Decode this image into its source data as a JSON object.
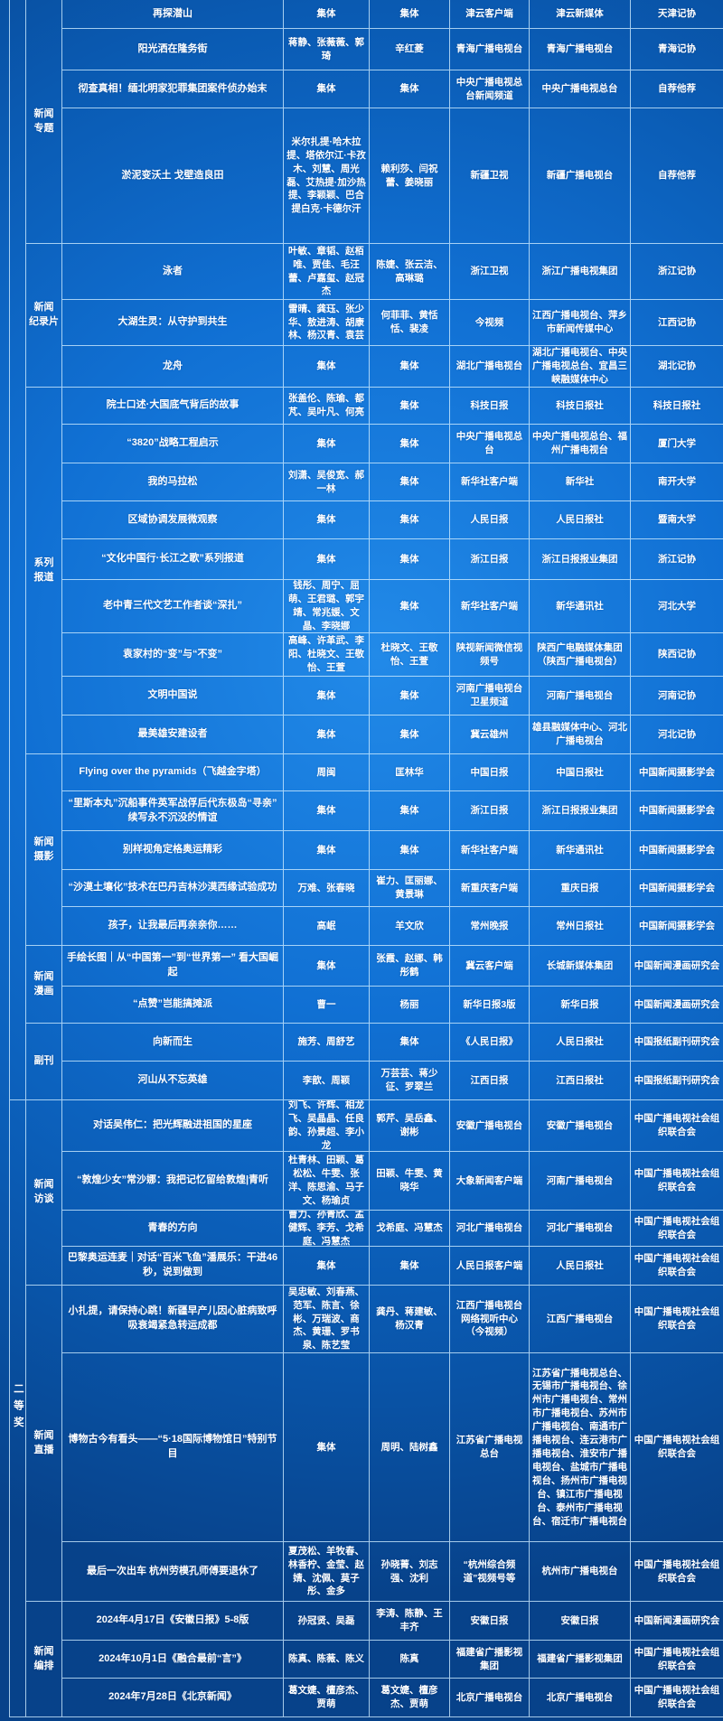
{
  "table": {
    "tiers": [
      {
        "label": ""
      },
      {
        "label": "二等奖"
      }
    ],
    "groups": [
      {
        "category": "新闻\n专题",
        "tier": 0,
        "rows": [
          {
            "title": "再探潜山",
            "authors": "集体",
            "editors": "集体",
            "media": "津云客户端",
            "org": "津云新媒体",
            "recommender": "天津记协"
          },
          {
            "title": "阳光洒在隆务街",
            "authors": "蒋静、张薇薇、郭琦",
            "editors": "辛红菱",
            "media": "青海广播电视台",
            "org": "青海广播电视台",
            "recommender": "青海记协"
          },
          {
            "title": "彻查真相！缅北明家犯罪集团案件侦办始末",
            "authors": "集体",
            "editors": "集体",
            "media": "中央广播电视总台新闻频道",
            "org": "中央广播电视总台",
            "recommender": "自荐他荐"
          },
          {
            "title": "淤泥变沃土 戈壁造良田",
            "authors": "米尔扎提·哈木拉提、塔依尔江·卡孜木、刘慧、周光磊、艾热提·加沙热提、李颖颖、巴合提白克·卡德尔汗",
            "editors": "赖利莎、闫祝蕾、姜晓丽",
            "media": "新疆卫视",
            "org": "新疆广播电视台",
            "recommender": "自荐他荐"
          }
        ]
      },
      {
        "category": "新闻\n纪录片",
        "tier": 0,
        "rows": [
          {
            "title": "泳者",
            "authors": "叶敏、章韬、赵栢唯、贾佳、毛汪蕾、卢嘉玺、赵冠杰",
            "editors": "陈婕、张云洁、高琳璐",
            "media": "浙江卫视",
            "org": "浙江广播电视集团",
            "recommender": "浙江记协"
          },
          {
            "title": "大湖生灵：从守护到共生",
            "authors": "雷晴、龚珏、张少华、敖进涛、胡康林、杨汉青、袁芸",
            "editors": "何菲菲、黄恬恬、裴凌",
            "media": "今视频",
            "org": "江西广播电视台、萍乡市新闻传媒中心",
            "recommender": "江西记协"
          },
          {
            "title": "龙舟",
            "authors": "集体",
            "editors": "集体",
            "media": "湖北广播电视台",
            "org": "湖北广播电视台、中央广播电视总台、宜昌三峡融媒体中心",
            "recommender": "湖北记协"
          }
        ]
      },
      {
        "category": "系列\n报道",
        "tier": 0,
        "rows": [
          {
            "title": "院士口述·大国底气背后的故事",
            "authors": "张盖伦、陈瑜、都芃、吴叶凡、何亮",
            "editors": "集体",
            "media": "科技日报",
            "org": "科技日报社",
            "recommender": "科技日报社"
          },
          {
            "title": "“3820”战略工程启示",
            "authors": "集体",
            "editors": "集体",
            "media": "中央广播电视总台",
            "org": "中央广播电视总台、福州广播电视台",
            "recommender": "厦门大学"
          },
          {
            "title": "我的马拉松",
            "authors": "刘潇、吴俊宽、郝一林",
            "editors": "集体",
            "media": "新华社客户端",
            "org": "新华社",
            "recommender": "南开大学"
          },
          {
            "title": "区域协调发展微观察",
            "authors": "集体",
            "editors": "集体",
            "media": "人民日报",
            "org": "人民日报社",
            "recommender": "暨南大学"
          },
          {
            "title": "“文化中国行·长江之歌”系列报道",
            "authors": "集体",
            "editors": "集体",
            "media": "浙江日报",
            "org": "浙江日报报业集团",
            "recommender": "浙江记协"
          },
          {
            "title": "老中青三代文艺工作者谈“深扎”",
            "authors": "钱彤、周宁、屈萌、王君璐、郭宇靖、常兆媛、文晶、李晓娜",
            "editors": "集体",
            "media": "新华社客户端",
            "org": "新华通讯社",
            "recommender": "河北大学"
          },
          {
            "title": "袁家村的“变”与“不变”",
            "authors": "高峰、许革武、李阳、杜晓文、王敬怡、王萱",
            "editors": "杜晓文、王敬怡、王萱",
            "media": "陕视新闻微信视频号",
            "org": "陕西广电融媒体集团（陕西广播电视台）",
            "recommender": "陕西记协"
          },
          {
            "title": "文明中国说",
            "authors": "集体",
            "editors": "集体",
            "media": "河南广播电视台卫星频道",
            "org": "河南广播电视台",
            "recommender": "河南记协"
          },
          {
            "title": "最美雄安建设者",
            "authors": "集体",
            "editors": "集体",
            "media": "冀云雄州",
            "org": "雄县融媒体中心、河北广播电视台",
            "recommender": "河北记协"
          }
        ]
      },
      {
        "category": "新闻\n摄影",
        "tier": 0,
        "rows": [
          {
            "title": "Flying over the pyramids（飞越金字塔）",
            "authors": "周闽",
            "editors": "匡林华",
            "media": "中国日报",
            "org": "中国日报社",
            "recommender": "中国新闻摄影学会"
          },
          {
            "title": "“里斯本丸”沉船事件英军战俘后代东极岛“寻亲” 续写永不沉没的情谊",
            "authors": "集体",
            "editors": "集体",
            "media": "浙江日报",
            "org": "浙江日报报业集团",
            "recommender": "中国新闻摄影学会"
          },
          {
            "title": "别样视角定格奥运精彩",
            "authors": "集体",
            "editors": "集体",
            "media": "新华社客户端",
            "org": "新华通讯社",
            "recommender": "中国新闻摄影学会"
          },
          {
            "title": "“沙漠土壤化”技术在巴丹吉林沙漠西缘试验成功",
            "authors": "万难、张春晓",
            "editors": "崔力、匡丽娜、黄景琳",
            "media": "新重庆客户端",
            "org": "重庆日报",
            "recommender": "中国新闻摄影学会"
          },
          {
            "title": "孩子，让我最后再亲亲你……",
            "authors": "高岷",
            "editors": "羊文欣",
            "media": "常州晚报",
            "org": "常州日报社",
            "recommender": "中国新闻摄影学会"
          }
        ]
      },
      {
        "category": "新闻\n漫画",
        "tier": 0,
        "rows": [
          {
            "title": "手绘长图｜从“中国第一”到“世界第一” 看大国崛起",
            "authors": "集体",
            "editors": "张霞、赵娜、韩彤鹤",
            "media": "冀云客户端",
            "org": "长城新媒体集团",
            "recommender": "中国新闻漫画研究会"
          },
          {
            "title": "“点赞”岂能搞摊派",
            "authors": "曹一",
            "editors": "杨丽",
            "media": "新华日报3版",
            "org": "新华日报",
            "recommender": "中国新闻漫画研究会"
          }
        ]
      },
      {
        "category": "副刊",
        "tier": 0,
        "rows": [
          {
            "title": "向新而生",
            "authors": "施芳、周舒艺",
            "editors": "集体",
            "media": "《人民日报》",
            "org": "人民日报社",
            "recommender": "中国报纸副刊研究会"
          },
          {
            "title": "河山从不忘英雄",
            "authors": "李歆、周颖",
            "editors": "万芸芸、蒋少征、罗翠兰",
            "media": "江西日报",
            "org": "江西日报社",
            "recommender": "中国报纸副刊研究会"
          }
        ]
      },
      {
        "category": "新闻\n访谈",
        "tier": 1,
        "rows": [
          {
            "title": "对话吴伟仁：把光辉融进祖国的星座",
            "authors": "刘飞、许辉、相龙飞、吴晶晶、任良韵、孙景超、李小龙",
            "editors": "郭芹、吴岳鑫、谢彬",
            "media": "安徽广播电视台",
            "org": "安徽广播电视台",
            "recommender": "中国广播电视社会组织联合会"
          },
          {
            "title": "“敦煌少女”常沙娜：我把记忆留给敦煌|青听",
            "authors": "杜青林、田颖、葛松松、牛雯、张洋、陈思渝、马子文、杨瑜贞",
            "editors": "田颖、牛雯、黄晓华",
            "media": "大象新闻客户端",
            "org": "河南广播电视台",
            "recommender": "中国广播电视社会组织联合会"
          },
          {
            "title": "青春的方向",
            "authors": "曹力、孙青欣、孟健辉、李芳、戈希庭、冯慧杰",
            "editors": "戈希庭、冯慧杰",
            "media": "河北广播电视台",
            "org": "河北广播电视台",
            "recommender": "中国广播电视社会组织联合会"
          },
          {
            "title": "巴黎奥运连麦｜对话“百米飞鱼”潘展乐：干进46秒，说到做到",
            "authors": "集体",
            "editors": "集体",
            "media": "人民日报客户端",
            "org": "人民日报社",
            "recommender": "中国广播电视社会组织联合会"
          }
        ]
      },
      {
        "category": "新闻\n直播",
        "tier": 1,
        "rows": [
          {
            "title": "小扎提，请保持心跳！新疆早产儿因心脏病致呼吸衰竭紧急转运成都",
            "authors": "吴忠敏、刘春燕、范军、陈言、徐彬、万瑞波、商杰、黄珊、罗书泉、陈艺莹",
            "editors": "龚丹、蒋建敏、杨汉青",
            "media": "江西广播电视台网络视听中心（今视频）",
            "org": "江西广播电视台",
            "recommender": "中国广播电视社会组织联合会"
          },
          {
            "title": "博物古今有看头——“5·18国际博物馆日”特别节目",
            "authors": "集体",
            "editors": "周明、陆树鑫",
            "media": "江苏省广播电视总台",
            "org": "江苏省广播电视总台、无锡市广播电视台、徐州市广播电视台、常州市广播电视台、苏州市广播电视台、南通市广播电视台、连云港市广播电视台、淮安市广播电视台、盐城市广播电视台、扬州市广播电视台、镇江市广播电视台、泰州市广播电视台、宿迁市广播电视台",
            "recommender": "中国广播电视社会组织联合会"
          },
          {
            "title": "最后一次出车 杭州劳模孔师傅要退休了",
            "authors": "夏茂松、羊牧春、林香柠、金莹、赵婧、沈佩、莫子彤、金多",
            "editors": "孙晓菁、刘志强、沈利",
            "media": "“杭州综合频道”视频号等",
            "org": "杭州市广播电视台",
            "recommender": "中国广播电视社会组织联合会"
          }
        ]
      },
      {
        "category": "新闻\n编排",
        "tier": 1,
        "rows": [
          {
            "title": "2024年4月17日《安徽日报》5-8版",
            "authors": "孙冠贤、吴磊",
            "editors": "李涛、陈静、王丰齐",
            "media": "安徽日报",
            "org": "安徽日报",
            "recommender": "中国新闻漫画研究会"
          },
          {
            "title": "2024年10月1日《融合最前“言”》",
            "authors": "陈真、陈薇、陈义",
            "editors": "陈真",
            "media": "福建省广播影视集团",
            "org": "福建省广播影视集团",
            "recommender": "中国广播电视社会组织联合会"
          },
          {
            "title": "2024年7月28日《北京新闻》",
            "authors": "葛文婕、檀彦杰、贾萌",
            "editors": "葛文婕、檀彦杰、贾萌",
            "media": "北京广播电视台",
            "org": "北京广播电视台",
            "recommender": "中国广播电视社会组织联合会"
          }
        ]
      }
    ],
    "colors": {
      "cell_blue": "#0d6fd3",
      "bright_blue": "#238ee8",
      "edge_navy": "#07428a",
      "grid_line": "#cdebff",
      "text": "#ffffff"
    }
  }
}
